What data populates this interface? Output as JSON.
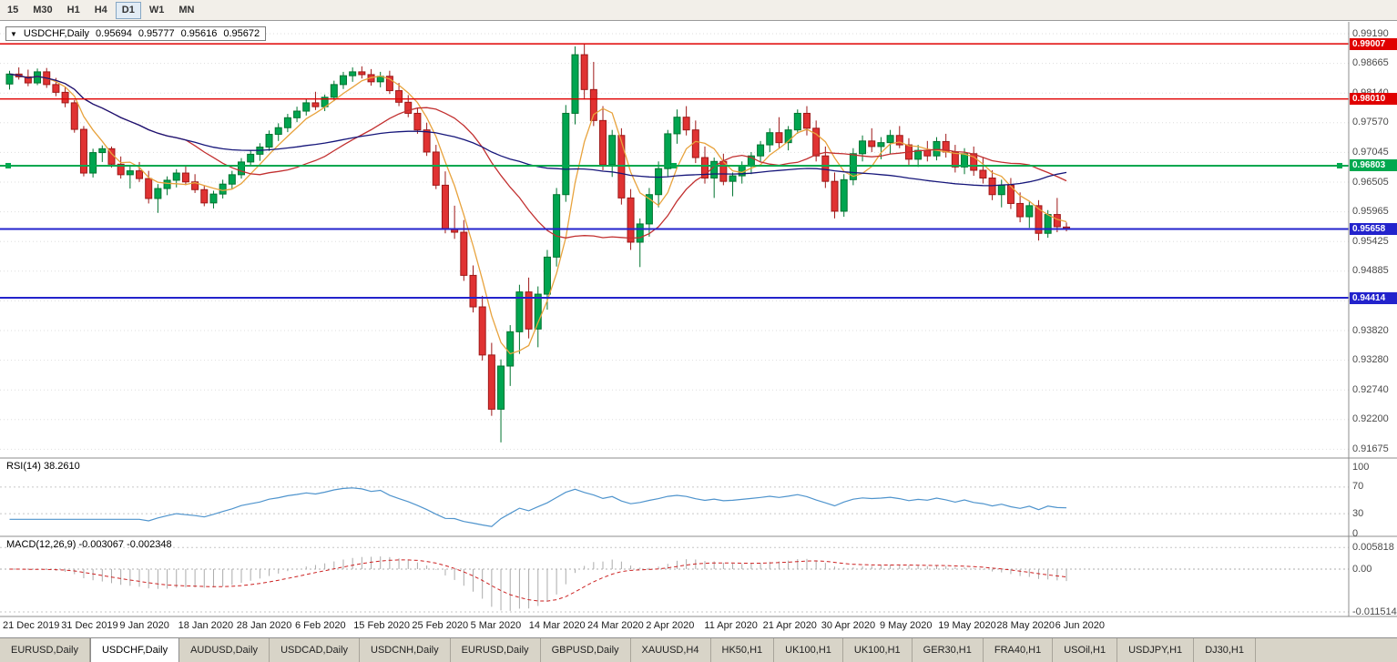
{
  "toolbar": {
    "timeframes": [
      "15",
      "M30",
      "H1",
      "H4",
      "D1",
      "W1",
      "MN"
    ],
    "active_timeframe": "D1"
  },
  "chart_header": {
    "symbol": "USDCHF,Daily",
    "open": "0.95694",
    "high": "0.95777",
    "low": "0.95616",
    "close": "0.95672"
  },
  "price_scale": [
    "0.99190",
    "0.98665",
    "0.98140",
    "0.97570",
    "0.97045",
    "0.96505",
    "0.95965",
    "0.95425",
    "0.94885",
    "0.94345",
    "0.93820",
    "0.93280",
    "0.92740",
    "0.92200",
    "0.91675"
  ],
  "hlines": [
    {
      "price": 0.99007,
      "label": "0.99007",
      "color": "#e00000",
      "width": 1.4,
      "selected": false
    },
    {
      "price": 0.9801,
      "label": "0.98010",
      "color": "#e00000",
      "width": 1.4,
      "selected": false
    },
    {
      "price": 0.96803,
      "label": "0.96803",
      "color": "#00a84f",
      "width": 2,
      "selected": true
    },
    {
      "price": 0.95658,
      "label": "0.95658",
      "color": "#2323cc",
      "width": 2,
      "selected": false
    },
    {
      "price": 0.94414,
      "label": "0.94414",
      "color": "#2323cc",
      "width": 2,
      "selected": false
    }
  ],
  "rsi": {
    "label": "RSI(14) 38.2610",
    "period": 14,
    "current": "38.2610",
    "scale": [
      "100",
      "70",
      "30",
      "0"
    ],
    "levels": [
      70,
      30
    ],
    "color": "#4f94cd"
  },
  "macd": {
    "label": "MACD(12,26,9) -0.003067 -0.002348",
    "params": [
      12,
      26,
      9
    ],
    "values": [
      "-0.003067",
      "-0.002348"
    ],
    "scale": [
      {
        "v": 0.005818,
        "label": "0.005818"
      },
      {
        "v": 0,
        "label": "0.00"
      },
      {
        "v": -0.011514,
        "label": "-0.011514"
      }
    ],
    "hist_color": "#ababab",
    "signal_color": "#cc2222"
  },
  "x_axis": {
    "labels": [
      "21 Dec 2019",
      "31 Dec 2019",
      "9 Jan 2020",
      "18 Jan 2020",
      "28 Jan 2020",
      "6 Feb 2020",
      "15 Feb 2020",
      "25 Feb 2020",
      "5 Mar 2020",
      "14 Mar 2020",
      "24 Mar 2020",
      "2 Apr 2020",
      "11 Apr 2020",
      "21 Apr 2020",
      "30 Apr 2020",
      "9 May 2020",
      "19 May 2020",
      "28 May 2020",
      "6 Jun 2020"
    ]
  },
  "tabs": [
    {
      "label": "EURUSD,Daily",
      "active": false
    },
    {
      "label": "USDCHF,Daily",
      "active": true
    },
    {
      "label": "AUDUSD,Daily",
      "active": false
    },
    {
      "label": "USDCAD,Daily",
      "active": false
    },
    {
      "label": "USDCNH,Daily",
      "active": false
    },
    {
      "label": "EURUSD,Daily",
      "active": false
    },
    {
      "label": "GBPUSD,Daily",
      "active": false
    },
    {
      "label": "XAUUSD,H4",
      "active": false
    },
    {
      "label": "HK50,H1",
      "active": false
    },
    {
      "label": "UK100,H1",
      "active": false
    },
    {
      "label": "UK100,H1",
      "active": false
    },
    {
      "label": "GER30,H1",
      "active": false
    },
    {
      "label": "FRA40,H1",
      "active": false
    },
    {
      "label": "USOil,H1",
      "active": false
    },
    {
      "label": "USDJPY,H1",
      "active": false
    },
    {
      "label": "DJ30,H1",
      "active": false
    }
  ],
  "colors": {
    "up": "#00a550",
    "up_edge": "#00742f",
    "down": "#e03232",
    "down_edge": "#9e1818",
    "grid": "#dedede",
    "separator": "#8c8c8c"
  },
  "chart_data": {
    "type": "candlestick",
    "symbol": "USDCHF",
    "timeframe": "Daily",
    "price_top_label": 0.9919,
    "price_bottom_label": 0.91675,
    "ma": [
      {
        "period": 5,
        "color": "#e8a33d"
      },
      {
        "period": 20,
        "color": "#c23030"
      },
      {
        "period": 60,
        "color": "#16167a"
      }
    ],
    "ohlc": [
      [
        0.9828,
        0.9852,
        0.9818,
        0.9846
      ],
      [
        0.9846,
        0.9858,
        0.9836,
        0.9841
      ],
      [
        0.9841,
        0.9854,
        0.9824,
        0.983
      ],
      [
        0.983,
        0.9856,
        0.9826,
        0.985
      ],
      [
        0.985,
        0.9857,
        0.9821,
        0.9827
      ],
      [
        0.9827,
        0.9839,
        0.9806,
        0.9813
      ],
      [
        0.9813,
        0.9822,
        0.9786,
        0.9794
      ],
      [
        0.9794,
        0.9799,
        0.974,
        0.9746
      ],
      [
        0.9746,
        0.9752,
        0.9661,
        0.9667
      ],
      [
        0.9667,
        0.9711,
        0.9659,
        0.9704
      ],
      [
        0.9704,
        0.9717,
        0.9687,
        0.9711
      ],
      [
        0.9711,
        0.9715,
        0.9677,
        0.9683
      ],
      [
        0.9683,
        0.9697,
        0.9657,
        0.9664
      ],
      [
        0.9664,
        0.9679,
        0.9639,
        0.9671
      ],
      [
        0.9671,
        0.9687,
        0.9651,
        0.9657
      ],
      [
        0.9657,
        0.9671,
        0.9612,
        0.9621
      ],
      [
        0.9621,
        0.9647,
        0.9595,
        0.9639
      ],
      [
        0.9639,
        0.9661,
        0.9627,
        0.9654
      ],
      [
        0.9654,
        0.9674,
        0.9641,
        0.9667
      ],
      [
        0.9667,
        0.9679,
        0.9645,
        0.9651
      ],
      [
        0.9651,
        0.9665,
        0.9631,
        0.9637
      ],
      [
        0.9637,
        0.9644,
        0.9607,
        0.9613
      ],
      [
        0.9613,
        0.9635,
        0.9603,
        0.9629
      ],
      [
        0.9629,
        0.9655,
        0.9621,
        0.9647
      ],
      [
        0.9647,
        0.9671,
        0.9639,
        0.9664
      ],
      [
        0.9664,
        0.9694,
        0.9657,
        0.9687
      ],
      [
        0.9687,
        0.9709,
        0.9679,
        0.9701
      ],
      [
        0.9701,
        0.9721,
        0.9689,
        0.9714
      ],
      [
        0.9714,
        0.9744,
        0.9707,
        0.9737
      ],
      [
        0.9737,
        0.9757,
        0.9725,
        0.9749
      ],
      [
        0.9749,
        0.9774,
        0.9741,
        0.9767
      ],
      [
        0.9767,
        0.9787,
        0.9759,
        0.9779
      ],
      [
        0.9779,
        0.9801,
        0.9771,
        0.9794
      ],
      [
        0.9794,
        0.9814,
        0.9781,
        0.9787
      ],
      [
        0.9787,
        0.9809,
        0.9779,
        0.9804
      ],
      [
        0.9804,
        0.9834,
        0.9797,
        0.9827
      ],
      [
        0.9827,
        0.985,
        0.9819,
        0.9843
      ],
      [
        0.9843,
        0.9858,
        0.9832,
        0.985
      ],
      [
        0.985,
        0.986,
        0.9838,
        0.9845
      ],
      [
        0.9845,
        0.9855,
        0.9825,
        0.9832
      ],
      [
        0.9832,
        0.985,
        0.9822,
        0.9842
      ],
      [
        0.9842,
        0.9852,
        0.981,
        0.9816
      ],
      [
        0.9816,
        0.983,
        0.9788,
        0.9795
      ],
      [
        0.9795,
        0.9808,
        0.9768,
        0.9775
      ],
      [
        0.9775,
        0.9785,
        0.9738,
        0.9745
      ],
      [
        0.9745,
        0.9758,
        0.9698,
        0.9705
      ],
      [
        0.9705,
        0.9718,
        0.9638,
        0.9645
      ],
      [
        0.9645,
        0.967,
        0.9558,
        0.9565
      ],
      [
        0.9565,
        0.9608,
        0.9548,
        0.956
      ],
      [
        0.956,
        0.9582,
        0.9472,
        0.9482
      ],
      [
        0.9482,
        0.95,
        0.9415,
        0.9425
      ],
      [
        0.9425,
        0.9445,
        0.9328,
        0.9338
      ],
      [
        0.9338,
        0.936,
        0.9228,
        0.924
      ],
      [
        0.924,
        0.933,
        0.918,
        0.9318
      ],
      [
        0.9318,
        0.9392,
        0.9282,
        0.938
      ],
      [
        0.938,
        0.9465,
        0.934,
        0.9452
      ],
      [
        0.9452,
        0.9478,
        0.9368,
        0.9385
      ],
      [
        0.9385,
        0.9462,
        0.9352,
        0.9448
      ],
      [
        0.9448,
        0.9528,
        0.942,
        0.9515
      ],
      [
        0.9515,
        0.964,
        0.9498,
        0.9628
      ],
      [
        0.9628,
        0.979,
        0.9615,
        0.9775
      ],
      [
        0.9775,
        0.9896,
        0.9755,
        0.9881
      ],
      [
        0.9881,
        0.99007,
        0.98,
        0.9818
      ],
      [
        0.9818,
        0.9868,
        0.9752,
        0.9762
      ],
      [
        0.9762,
        0.9788,
        0.9672,
        0.9682
      ],
      [
        0.9682,
        0.9745,
        0.966,
        0.9735
      ],
      [
        0.9735,
        0.9748,
        0.961,
        0.9622
      ],
      [
        0.9622,
        0.9638,
        0.9528,
        0.9542
      ],
      [
        0.9542,
        0.9585,
        0.9497,
        0.9575
      ],
      [
        0.9575,
        0.964,
        0.9552,
        0.9628
      ],
      [
        0.9628,
        0.9688,
        0.9605,
        0.9675
      ],
      [
        0.9675,
        0.9745,
        0.966,
        0.9738
      ],
      [
        0.9738,
        0.9782,
        0.972,
        0.9768
      ],
      [
        0.9768,
        0.9788,
        0.9735,
        0.9745
      ],
      [
        0.9745,
        0.9762,
        0.9685,
        0.9695
      ],
      [
        0.9695,
        0.9715,
        0.9648,
        0.9658
      ],
      [
        0.9658,
        0.9695,
        0.9622,
        0.9688
      ],
      [
        0.9688,
        0.9702,
        0.9645,
        0.9652
      ],
      [
        0.9652,
        0.9668,
        0.9625,
        0.9662
      ],
      [
        0.9662,
        0.9688,
        0.9648,
        0.968
      ],
      [
        0.968,
        0.9705,
        0.9665,
        0.9698
      ],
      [
        0.9698,
        0.9725,
        0.9688,
        0.9718
      ],
      [
        0.9718,
        0.9748,
        0.9705,
        0.974
      ],
      [
        0.974,
        0.9768,
        0.9712,
        0.9722
      ],
      [
        0.9722,
        0.9752,
        0.9708,
        0.9745
      ],
      [
        0.9745,
        0.9782,
        0.9738,
        0.9775
      ],
      [
        0.9775,
        0.9788,
        0.9735,
        0.9748
      ],
      [
        0.9748,
        0.9762,
        0.9688,
        0.9698
      ],
      [
        0.9698,
        0.9715,
        0.964,
        0.9652
      ],
      [
        0.9652,
        0.9668,
        0.9585,
        0.9598
      ],
      [
        0.9598,
        0.9665,
        0.9588,
        0.9655
      ],
      [
        0.9655,
        0.9712,
        0.9645,
        0.9702
      ],
      [
        0.9702,
        0.9735,
        0.9688,
        0.9725
      ],
      [
        0.9725,
        0.9748,
        0.9705,
        0.9715
      ],
      [
        0.9715,
        0.9732,
        0.9692,
        0.9722
      ],
      [
        0.9722,
        0.9745,
        0.9702,
        0.9735
      ],
      [
        0.9735,
        0.9752,
        0.9712,
        0.9718
      ],
      [
        0.9718,
        0.973,
        0.9682,
        0.9692
      ],
      [
        0.9692,
        0.9718,
        0.9678,
        0.9708
      ],
      [
        0.9708,
        0.9725,
        0.9688,
        0.9698
      ],
      [
        0.9698,
        0.9732,
        0.969,
        0.9724
      ],
      [
        0.9724,
        0.9738,
        0.9695,
        0.9705
      ],
      [
        0.9705,
        0.9718,
        0.9668,
        0.9678
      ],
      [
        0.9678,
        0.9712,
        0.9665,
        0.9702
      ],
      [
        0.9702,
        0.9715,
        0.9662,
        0.9672
      ],
      [
        0.9672,
        0.9695,
        0.9648,
        0.9658
      ],
      [
        0.9658,
        0.9672,
        0.9618,
        0.9628
      ],
      [
        0.9628,
        0.9655,
        0.9605,
        0.9645
      ],
      [
        0.9645,
        0.9658,
        0.9602,
        0.9612
      ],
      [
        0.9612,
        0.9632,
        0.9578,
        0.9588
      ],
      [
        0.9588,
        0.9615,
        0.9568,
        0.9608
      ],
      [
        0.9608,
        0.9618,
        0.9545,
        0.9558
      ],
      [
        0.9558,
        0.96,
        0.955,
        0.9592
      ],
      [
        0.9592,
        0.9622,
        0.956,
        0.957
      ],
      [
        0.95694,
        0.95777,
        0.95616,
        0.95672
      ]
    ]
  }
}
